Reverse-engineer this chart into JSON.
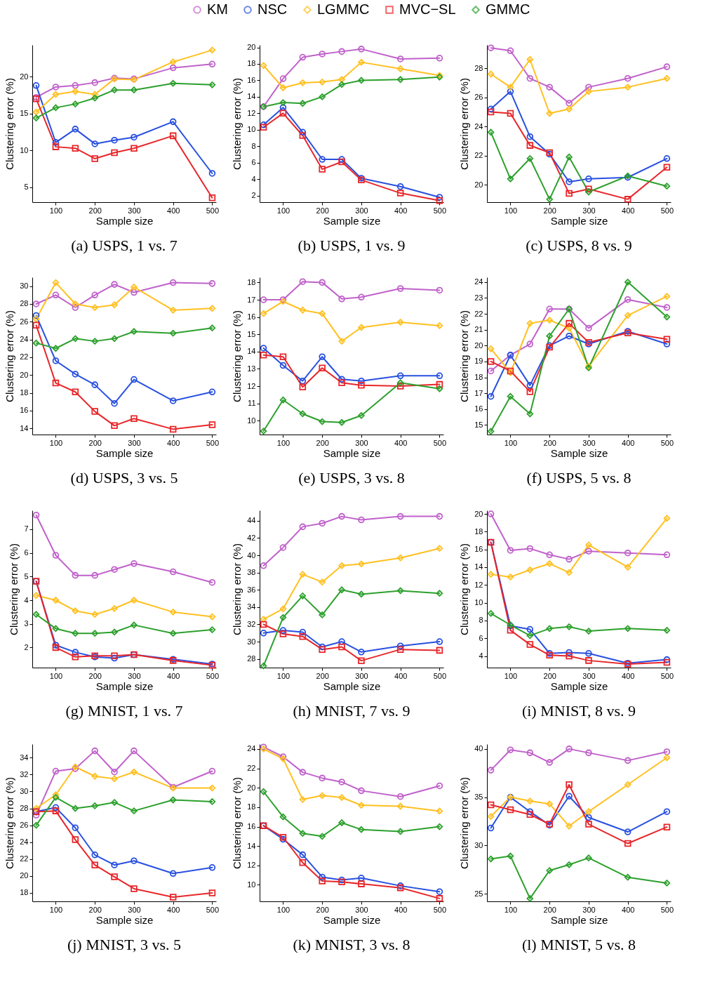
{
  "chart_data": [
    {
      "type": "line",
      "title": "(a)  USPS, 1 vs. 7",
      "xlabel": "Sample size",
      "ylabel": "Clustering error (%)",
      "legend": "top",
      "x": [
        50,
        100,
        150,
        200,
        250,
        300,
        400,
        500
      ],
      "xlim": [
        40,
        510
      ],
      "xticks": [
        100,
        200,
        300,
        400,
        500
      ],
      "ylim": [
        3,
        24.3
      ],
      "yticks": [
        5,
        10,
        15,
        20
      ],
      "series": [
        {
          "name": "KM",
          "color": "#c061cb",
          "marker": "circle",
          "values": [
            17.2,
            18.6,
            18.8,
            19.2,
            19.8,
            19.7,
            21.2,
            21.7
          ]
        },
        {
          "name": "NSC",
          "color": "#2850e0",
          "marker": "circle",
          "values": [
            18.8,
            11.1,
            12.9,
            10.9,
            11.4,
            11.8,
            13.9,
            6.9
          ]
        },
        {
          "name": "LGMMC",
          "color": "#ffc020",
          "marker": "diamond",
          "values": [
            15.2,
            17.6,
            18.0,
            17.6,
            19.7,
            19.6,
            22.0,
            23.6
          ]
        },
        {
          "name": "MVC−SL",
          "color": "#e8262a",
          "marker": "square",
          "values": [
            17.0,
            10.5,
            10.3,
            8.9,
            9.7,
            10.3,
            12.0,
            3.6
          ]
        },
        {
          "name": "GMMC",
          "color": "#2ca02c",
          "marker": "diamond",
          "values": [
            14.4,
            15.8,
            16.3,
            17.1,
            18.2,
            18.2,
            19.1,
            18.9
          ]
        }
      ]
    },
    {
      "type": "line",
      "title": "(b)  USPS, 1 vs. 9",
      "xlabel": "Sample size",
      "ylabel": "Clustering error (%)",
      "x": [
        50,
        100,
        150,
        200,
        250,
        300,
        400,
        500
      ],
      "xlim": [
        40,
        510
      ],
      "xticks": [
        100,
        200,
        300,
        400,
        500
      ],
      "ylim": [
        1.2,
        20.3
      ],
      "yticks": [
        2,
        4,
        6,
        8,
        10,
        12,
        14,
        16,
        18,
        20
      ],
      "series": [
        {
          "color": "#c061cb",
          "marker": "circle",
          "values": [
            12.8,
            16.2,
            18.8,
            19.2,
            19.5,
            19.8,
            18.6,
            18.7
          ]
        },
        {
          "color": "#2850e0",
          "marker": "circle",
          "values": [
            10.6,
            12.7,
            9.7,
            6.4,
            6.4,
            4.1,
            3.1,
            1.8
          ]
        },
        {
          "color": "#ffc020",
          "marker": "diamond",
          "values": [
            17.8,
            15.1,
            15.7,
            15.8,
            16.1,
            18.2,
            17.4,
            16.6
          ]
        },
        {
          "color": "#e8262a",
          "marker": "square",
          "values": [
            10.3,
            12.0,
            9.3,
            5.2,
            6.1,
            3.9,
            2.3,
            1.4
          ]
        },
        {
          "color": "#2ca02c",
          "marker": "diamond",
          "values": [
            12.8,
            13.3,
            13.2,
            14.0,
            15.5,
            16.0,
            16.1,
            16.4
          ]
        }
      ]
    },
    {
      "type": "line",
      "title": "(c)  USPS, 8 vs. 9",
      "xlabel": "Sample size",
      "ylabel": "Clustering error (%)",
      "x": [
        50,
        100,
        150,
        200,
        250,
        300,
        400,
        500
      ],
      "xlim": [
        40,
        510
      ],
      "xticks": [
        100,
        200,
        300,
        400,
        500
      ],
      "ylim": [
        18.8,
        29.6
      ],
      "yticks": [
        20,
        22,
        24,
        26,
        28
      ],
      "series": [
        {
          "color": "#c061cb",
          "marker": "circle",
          "values": [
            29.4,
            29.2,
            27.3,
            26.7,
            25.6,
            26.7,
            27.3,
            28.1
          ]
        },
        {
          "color": "#2850e0",
          "marker": "circle",
          "values": [
            25.2,
            26.4,
            23.3,
            22.1,
            20.2,
            20.4,
            20.5,
            21.8
          ]
        },
        {
          "color": "#ffc020",
          "marker": "diamond",
          "values": [
            27.6,
            26.7,
            28.6,
            24.9,
            25.2,
            26.4,
            26.7,
            27.3
          ]
        },
        {
          "color": "#e8262a",
          "marker": "square",
          "values": [
            25.0,
            24.9,
            22.7,
            22.2,
            19.4,
            19.7,
            19.0,
            21.2
          ]
        },
        {
          "color": "#2ca02c",
          "marker": "diamond",
          "values": [
            23.6,
            20.4,
            21.8,
            19.0,
            21.9,
            19.5,
            20.6,
            19.9
          ]
        }
      ]
    },
    {
      "type": "line",
      "title": "(d)  USPS, 3 vs. 5",
      "xlabel": "Sample size",
      "ylabel": "Clustering error (%)",
      "x": [
        50,
        100,
        150,
        200,
        250,
        300,
        400,
        500
      ],
      "xlim": [
        40,
        510
      ],
      "xticks": [
        100,
        200,
        300,
        400,
        500
      ],
      "ylim": [
        13.3,
        31
      ],
      "yticks": [
        14,
        16,
        18,
        20,
        22,
        24,
        26,
        28,
        30
      ],
      "series": [
        {
          "color": "#c061cb",
          "marker": "circle",
          "values": [
            28.0,
            29.0,
            27.6,
            29.0,
            30.2,
            29.3,
            30.4,
            30.3
          ]
        },
        {
          "color": "#2850e0",
          "marker": "circle",
          "values": [
            26.7,
            21.6,
            20.1,
            18.9,
            16.8,
            19.5,
            17.1,
            18.1
          ]
        },
        {
          "color": "#ffc020",
          "marker": "diamond",
          "values": [
            26.3,
            30.4,
            28.0,
            27.6,
            27.9,
            29.9,
            27.3,
            27.5
          ]
        },
        {
          "color": "#e8262a",
          "marker": "square",
          "values": [
            25.6,
            19.1,
            18.1,
            15.9,
            14.3,
            15.1,
            13.9,
            14.4
          ]
        },
        {
          "color": "#2ca02c",
          "marker": "diamond",
          "values": [
            23.6,
            23.0,
            24.1,
            23.8,
            24.1,
            24.9,
            24.7,
            25.3
          ]
        }
      ]
    },
    {
      "type": "line",
      "title": "(e)  USPS, 3 vs. 8",
      "xlabel": "Sample size",
      "ylabel": "Clustering error (%)",
      "x": [
        50,
        100,
        150,
        200,
        250,
        300,
        400,
        500
      ],
      "xlim": [
        40,
        510
      ],
      "xticks": [
        100,
        200,
        300,
        400,
        500
      ],
      "ylim": [
        9.2,
        18.3
      ],
      "yticks": [
        10,
        11,
        12,
        13,
        14,
        15,
        16,
        17,
        18
      ],
      "series": [
        {
          "color": "#c061cb",
          "marker": "circle",
          "values": [
            17.0,
            17.0,
            18.05,
            18.0,
            17.05,
            17.15,
            17.65,
            17.55
          ]
        },
        {
          "color": "#2850e0",
          "marker": "circle",
          "values": [
            14.2,
            13.2,
            12.3,
            13.7,
            12.4,
            12.3,
            12.6,
            12.6
          ]
        },
        {
          "color": "#ffc020",
          "marker": "diamond",
          "values": [
            16.2,
            16.9,
            16.4,
            16.2,
            14.6,
            15.4,
            15.7,
            15.5
          ]
        },
        {
          "color": "#e8262a",
          "marker": "square",
          "values": [
            13.8,
            13.7,
            11.95,
            13.05,
            12.2,
            12.05,
            12.0,
            12.1
          ]
        },
        {
          "color": "#2ca02c",
          "marker": "diamond",
          "values": [
            9.4,
            11.2,
            10.4,
            9.95,
            9.9,
            10.3,
            12.2,
            11.85
          ]
        }
      ]
    },
    {
      "type": "line",
      "title": "(f)  USPS, 5 vs. 8",
      "xlabel": "Sample size",
      "ylabel": "Clustering error (%)",
      "x": [
        50,
        100,
        150,
        200,
        250,
        300,
        400,
        500
      ],
      "xlim": [
        40,
        510
      ],
      "xticks": [
        100,
        200,
        300,
        400,
        500
      ],
      "ylim": [
        14.4,
        24.3
      ],
      "yticks": [
        15,
        16,
        17,
        18,
        19,
        20,
        21,
        22,
        23,
        24
      ],
      "series": [
        {
          "color": "#c061cb",
          "marker": "circle",
          "values": [
            18.4,
            19.4,
            20.1,
            22.3,
            22.3,
            21.1,
            22.9,
            22.4
          ]
        },
        {
          "color": "#2850e0",
          "marker": "circle",
          "values": [
            16.8,
            19.4,
            17.5,
            20.0,
            20.6,
            20.1,
            20.9,
            20.1
          ]
        },
        {
          "color": "#ffc020",
          "marker": "diamond",
          "values": [
            19.8,
            18.3,
            21.4,
            21.6,
            21.1,
            18.7,
            21.9,
            23.1
          ]
        },
        {
          "color": "#e8262a",
          "marker": "square",
          "values": [
            19.0,
            18.4,
            17.1,
            19.9,
            21.4,
            20.2,
            20.8,
            20.4
          ]
        },
        {
          "color": "#2ca02c",
          "marker": "diamond",
          "values": [
            14.6,
            16.8,
            15.7,
            20.6,
            22.3,
            18.6,
            24.0,
            21.8
          ]
        }
      ]
    },
    {
      "type": "line",
      "title": "(g)  MNIST, 1 vs. 7",
      "xlabel": "Sample size",
      "ylabel": "Clustering error (%)",
      "x": [
        50,
        100,
        150,
        200,
        250,
        300,
        400,
        500
      ],
      "xlim": [
        40,
        510
      ],
      "xticks": [
        100,
        200,
        300,
        400,
        500
      ],
      "ylim": [
        1.15,
        7.8
      ],
      "yticks": [
        2,
        3,
        4,
        5,
        6,
        7
      ],
      "series": [
        {
          "color": "#c061cb",
          "marker": "circle",
          "values": [
            7.6,
            5.9,
            5.05,
            5.05,
            5.3,
            5.55,
            5.2,
            4.75
          ]
        },
        {
          "color": "#2850e0",
          "marker": "circle",
          "values": [
            4.8,
            2.1,
            1.8,
            1.6,
            1.55,
            1.7,
            1.5,
            1.3
          ]
        },
        {
          "color": "#ffc020",
          "marker": "diamond",
          "values": [
            4.2,
            4.0,
            3.55,
            3.4,
            3.65,
            4.0,
            3.5,
            3.3
          ]
        },
        {
          "color": "#e8262a",
          "marker": "square",
          "values": [
            4.8,
            2.0,
            1.6,
            1.65,
            1.65,
            1.7,
            1.45,
            1.25
          ]
        },
        {
          "color": "#2ca02c",
          "marker": "diamond",
          "values": [
            3.4,
            2.8,
            2.6,
            2.6,
            2.65,
            2.95,
            2.6,
            2.75
          ]
        }
      ]
    },
    {
      "type": "line",
      "title": "(h)  MNIST, 7 vs. 9",
      "xlabel": "Sample size",
      "ylabel": "Clustering error (%)",
      "x": [
        50,
        100,
        150,
        200,
        250,
        300,
        400,
        500
      ],
      "xlim": [
        40,
        510
      ],
      "xticks": [
        100,
        200,
        300,
        400,
        500
      ],
      "ylim": [
        27,
        45.2
      ],
      "yticks": [
        28,
        30,
        32,
        34,
        36,
        38,
        40,
        42,
        44
      ],
      "series": [
        {
          "color": "#c061cb",
          "marker": "circle",
          "values": [
            38.8,
            40.9,
            43.3,
            43.7,
            44.5,
            44.1,
            44.5,
            44.5
          ]
        },
        {
          "color": "#2850e0",
          "marker": "circle",
          "values": [
            31.0,
            31.3,
            31.1,
            29.4,
            30.0,
            28.8,
            29.5,
            30.0
          ]
        },
        {
          "color": "#ffc020",
          "marker": "diamond",
          "values": [
            32.6,
            33.8,
            37.8,
            36.9,
            38.8,
            39.0,
            39.7,
            40.8
          ]
        },
        {
          "color": "#e8262a",
          "marker": "square",
          "values": [
            32.0,
            30.9,
            30.6,
            29.1,
            29.4,
            27.8,
            29.1,
            29.0
          ]
        },
        {
          "color": "#2ca02c",
          "marker": "diamond",
          "values": [
            27.2,
            32.8,
            35.3,
            33.1,
            36.0,
            35.5,
            35.9,
            35.6
          ]
        }
      ]
    },
    {
      "type": "line",
      "title": "(i)  MNIST, 8 vs. 9",
      "xlabel": "Sample size",
      "ylabel": "Clustering error (%)",
      "x": [
        50,
        100,
        150,
        200,
        250,
        300,
        400,
        500
      ],
      "xlim": [
        40,
        510
      ],
      "xticks": [
        100,
        200,
        300,
        400,
        500
      ],
      "ylim": [
        2.7,
        20.4
      ],
      "yticks": [
        4,
        6,
        8,
        10,
        12,
        14,
        16,
        18,
        20
      ],
      "series": [
        {
          "color": "#c061cb",
          "marker": "circle",
          "values": [
            20.0,
            15.9,
            16.1,
            15.4,
            14.9,
            15.8,
            15.6,
            15.4
          ]
        },
        {
          "color": "#2850e0",
          "marker": "circle",
          "values": [
            16.8,
            7.4,
            7.0,
            4.3,
            4.4,
            4.3,
            3.2,
            3.6
          ]
        },
        {
          "color": "#ffc020",
          "marker": "diamond",
          "values": [
            13.2,
            12.9,
            13.7,
            14.4,
            13.4,
            16.5,
            14.0,
            19.5
          ]
        },
        {
          "color": "#e8262a",
          "marker": "square",
          "values": [
            16.8,
            6.9,
            5.3,
            4.1,
            4.0,
            3.5,
            3.1,
            3.3
          ]
        },
        {
          "color": "#2ca02c",
          "marker": "diamond",
          "values": [
            8.8,
            7.5,
            6.3,
            7.1,
            7.3,
            6.8,
            7.1,
            6.9
          ]
        }
      ]
    },
    {
      "type": "line",
      "title": "(j)  MNIST, 3 vs. 5",
      "xlabel": "Sample size",
      "ylabel": "Clustering error (%)",
      "x": [
        50,
        100,
        150,
        200,
        250,
        300,
        400,
        500
      ],
      "xlim": [
        40,
        510
      ],
      "xticks": [
        100,
        200,
        300,
        400,
        500
      ],
      "ylim": [
        17,
        35.6
      ],
      "yticks": [
        18,
        20,
        22,
        24,
        26,
        28,
        30,
        32,
        34
      ],
      "series": [
        {
          "color": "#c061cb",
          "marker": "circle",
          "values": [
            27.2,
            32.4,
            32.7,
            34.8,
            32.3,
            34.8,
            30.5,
            32.4
          ]
        },
        {
          "color": "#2850e0",
          "marker": "circle",
          "values": [
            27.6,
            28.1,
            25.7,
            22.5,
            21.3,
            21.8,
            20.3,
            21.0
          ]
        },
        {
          "color": "#ffc020",
          "marker": "diamond",
          "values": [
            28.0,
            29.6,
            32.9,
            31.8,
            31.5,
            32.3,
            30.4,
            30.4
          ]
        },
        {
          "color": "#e8262a",
          "marker": "square",
          "values": [
            27.6,
            27.7,
            24.3,
            21.3,
            19.9,
            18.5,
            17.5,
            18.0
          ]
        },
        {
          "color": "#2ca02c",
          "marker": "diamond",
          "values": [
            26.0,
            29.3,
            28.0,
            28.3,
            28.7,
            27.7,
            29.0,
            28.8
          ]
        }
      ]
    },
    {
      "type": "line",
      "title": "(k)  MNIST, 3 vs. 8",
      "xlabel": "Sample size",
      "ylabel": "Clustering error (%)",
      "x": [
        50,
        100,
        150,
        200,
        250,
        300,
        400,
        500
      ],
      "xlim": [
        40,
        510
      ],
      "xticks": [
        100,
        200,
        300,
        400,
        500
      ],
      "ylim": [
        8.3,
        24.5
      ],
      "yticks": [
        10,
        12,
        14,
        16,
        18,
        20,
        22,
        24
      ],
      "series": [
        {
          "color": "#c061cb",
          "marker": "circle",
          "values": [
            24.2,
            23.2,
            21.6,
            21.0,
            20.6,
            19.7,
            19.1,
            20.2
          ]
        },
        {
          "color": "#2850e0",
          "marker": "circle",
          "values": [
            16.1,
            14.7,
            13.1,
            10.8,
            10.5,
            10.7,
            9.9,
            9.3
          ]
        },
        {
          "color": "#ffc020",
          "marker": "diamond",
          "values": [
            24.0,
            23.0,
            18.8,
            19.2,
            19.0,
            18.2,
            18.1,
            17.6
          ]
        },
        {
          "color": "#e8262a",
          "marker": "square",
          "values": [
            16.1,
            14.9,
            12.3,
            10.4,
            10.3,
            10.1,
            9.7,
            8.6
          ]
        },
        {
          "color": "#2ca02c",
          "marker": "diamond",
          "values": [
            19.6,
            17.0,
            15.3,
            15.0,
            16.4,
            15.7,
            15.5,
            16.0
          ]
        }
      ]
    },
    {
      "type": "line",
      "title": "(l)  MNIST, 5 vs. 8",
      "xlabel": "Sample size",
      "ylabel": "Clustering error (%)",
      "x": [
        50,
        100,
        150,
        200,
        250,
        300,
        400,
        500
      ],
      "xlim": [
        40,
        510
      ],
      "xticks": [
        100,
        200,
        300,
        400,
        500
      ],
      "ylim": [
        24.2,
        40.5
      ],
      "yticks": [
        25,
        30,
        35,
        40
      ],
      "series": [
        {
          "color": "#c061cb",
          "marker": "circle",
          "values": [
            37.8,
            39.9,
            39.6,
            38.6,
            40.0,
            39.6,
            38.8,
            39.7
          ]
        },
        {
          "color": "#2850e0",
          "marker": "circle",
          "values": [
            31.8,
            35.0,
            33.5,
            32.1,
            35.1,
            32.9,
            31.4,
            33.5
          ]
        },
        {
          "color": "#ffc020",
          "marker": "diamond",
          "values": [
            33.0,
            35.0,
            34.6,
            34.3,
            32.0,
            33.5,
            36.3,
            39.1
          ]
        },
        {
          "color": "#e8262a",
          "marker": "square",
          "values": [
            34.2,
            33.7,
            33.2,
            32.2,
            36.3,
            32.2,
            30.2,
            31.9
          ]
        },
        {
          "color": "#2ca02c",
          "marker": "diamond",
          "values": [
            28.6,
            28.9,
            24.5,
            27.4,
            28.0,
            28.7,
            26.7,
            26.1
          ]
        }
      ]
    }
  ]
}
